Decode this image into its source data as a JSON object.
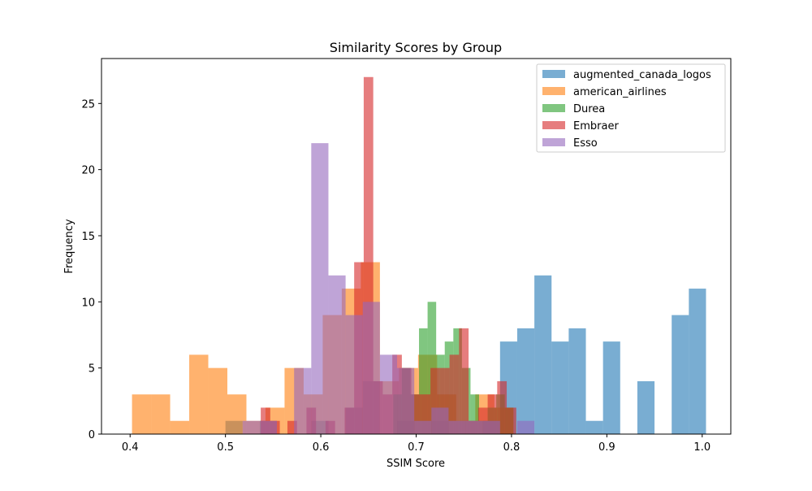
{
  "chart_data": {
    "type": "histogram",
    "title": "Similarity Scores by Group",
    "xlabel": "SSIM Score",
    "ylabel": "Frequency",
    "xlim": [
      0.37,
      1.03
    ],
    "ylim": [
      0,
      28.4
    ],
    "x_ticks": [
      0.4,
      0.5,
      0.6,
      0.7,
      0.8,
      0.9,
      1.0
    ],
    "x_tick_labels": [
      "0.4",
      "0.5",
      "0.6",
      "0.7",
      "0.8",
      "0.9",
      "1.0"
    ],
    "y_ticks": [
      0,
      5,
      10,
      15,
      20,
      25
    ],
    "y_tick_labels": [
      "0",
      "5",
      "10",
      "15",
      "20",
      "25"
    ],
    "grid": false,
    "legend_position": "top-right",
    "bar_opacity": 0.6,
    "series": [
      {
        "name": "augmented_canada_logos",
        "color": "#1f77b4",
        "bins": [
          [
            0.5,
            0.518,
            1
          ],
          [
            0.536,
            0.554,
            1
          ],
          [
            0.59,
            0.608,
            1
          ],
          [
            0.626,
            0.644,
            2
          ],
          [
            0.644,
            0.662,
            4
          ],
          [
            0.68,
            0.698,
            1
          ],
          [
            0.716,
            0.734,
            1
          ],
          [
            0.77,
            0.788,
            1
          ],
          [
            0.788,
            0.806,
            7
          ],
          [
            0.806,
            0.824,
            8
          ],
          [
            0.824,
            0.842,
            12
          ],
          [
            0.842,
            0.86,
            7
          ],
          [
            0.86,
            0.878,
            8
          ],
          [
            0.878,
            0.896,
            1
          ],
          [
            0.896,
            0.914,
            7
          ],
          [
            0.932,
            0.95,
            4
          ],
          [
            0.968,
            0.986,
            9
          ],
          [
            0.986,
            1.004,
            11
          ]
        ]
      },
      {
        "name": "american_airlines",
        "color": "#ff7f0e",
        "bins": [
          [
            0.402,
            0.422,
            3
          ],
          [
            0.422,
            0.442,
            3
          ],
          [
            0.442,
            0.462,
            1
          ],
          [
            0.462,
            0.482,
            6
          ],
          [
            0.482,
            0.502,
            5
          ],
          [
            0.502,
            0.522,
            3
          ],
          [
            0.522,
            0.542,
            1
          ],
          [
            0.542,
            0.562,
            2
          ],
          [
            0.562,
            0.582,
            5
          ],
          [
            0.582,
            0.602,
            3
          ],
          [
            0.602,
            0.622,
            9
          ],
          [
            0.622,
            0.642,
            11
          ],
          [
            0.642,
            0.662,
            13
          ],
          [
            0.662,
            0.682,
            4
          ],
          [
            0.682,
            0.702,
            5
          ],
          [
            0.702,
            0.722,
            6
          ],
          [
            0.722,
            0.742,
            3
          ],
          [
            0.742,
            0.762,
            1
          ],
          [
            0.762,
            0.782,
            3
          ],
          [
            0.782,
            0.802,
            2
          ]
        ]
      },
      {
        "name": "Durea",
        "color": "#2ca02c",
        "bins": [
          [
            0.676,
            0.685,
            3
          ],
          [
            0.685,
            0.694,
            5
          ],
          [
            0.694,
            0.703,
            3
          ],
          [
            0.703,
            0.712,
            8
          ],
          [
            0.712,
            0.721,
            10
          ],
          [
            0.721,
            0.73,
            6
          ],
          [
            0.73,
            0.739,
            7
          ],
          [
            0.739,
            0.748,
            8
          ],
          [
            0.748,
            0.757,
            5
          ],
          [
            0.757,
            0.766,
            3
          ],
          [
            0.766,
            0.775,
            1
          ],
          [
            0.775,
            0.784,
            2
          ],
          [
            0.784,
            0.793,
            3
          ],
          [
            0.793,
            0.802,
            2
          ]
        ]
      },
      {
        "name": "Embraer",
        "color": "#d62728",
        "bins": [
          [
            0.537,
            0.547,
            2
          ],
          [
            0.547,
            0.557,
            1
          ],
          [
            0.565,
            0.575,
            1
          ],
          [
            0.585,
            0.595,
            2
          ],
          [
            0.605,
            0.615,
            1
          ],
          [
            0.625,
            0.635,
            2
          ],
          [
            0.635,
            0.645,
            13
          ],
          [
            0.645,
            0.655,
            27
          ],
          [
            0.655,
            0.665,
            4
          ],
          [
            0.665,
            0.675,
            3
          ],
          [
            0.675,
            0.685,
            6
          ],
          [
            0.685,
            0.695,
            5
          ],
          [
            0.695,
            0.705,
            3
          ],
          [
            0.705,
            0.715,
            3
          ],
          [
            0.715,
            0.725,
            5
          ],
          [
            0.725,
            0.735,
            5
          ],
          [
            0.735,
            0.745,
            6
          ],
          [
            0.745,
            0.755,
            8
          ],
          [
            0.755,
            0.765,
            1
          ],
          [
            0.765,
            0.775,
            2
          ],
          [
            0.775,
            0.785,
            3
          ],
          [
            0.785,
            0.795,
            4
          ],
          [
            0.795,
            0.805,
            2
          ]
        ]
      },
      {
        "name": "Esso",
        "color": "#9467bd",
        "bins": [
          [
            0.518,
            0.536,
            1
          ],
          [
            0.536,
            0.554,
            1
          ],
          [
            0.572,
            0.59,
            5
          ],
          [
            0.59,
            0.608,
            22
          ],
          [
            0.608,
            0.626,
            12
          ],
          [
            0.626,
            0.644,
            9
          ],
          [
            0.644,
            0.662,
            10
          ],
          [
            0.662,
            0.68,
            6
          ],
          [
            0.68,
            0.698,
            5
          ],
          [
            0.698,
            0.716,
            1
          ],
          [
            0.716,
            0.734,
            2
          ],
          [
            0.734,
            0.752,
            1
          ],
          [
            0.752,
            0.77,
            1
          ],
          [
            0.77,
            0.788,
            1
          ],
          [
            0.806,
            0.824,
            1
          ]
        ]
      }
    ]
  }
}
